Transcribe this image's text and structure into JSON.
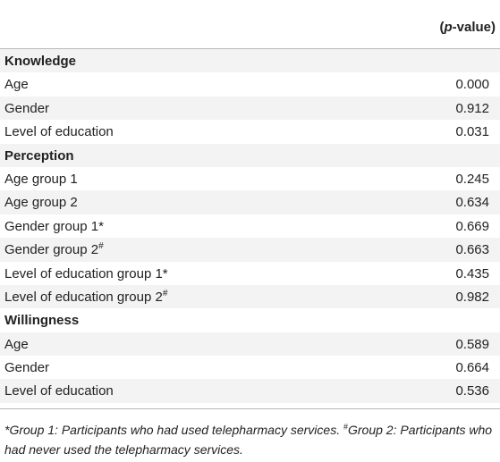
{
  "table": {
    "header": {
      "pvalue_open": "(",
      "pvalue_italic": "p",
      "pvalue_rest": "-value)"
    },
    "rows": [
      {
        "type": "section",
        "label": "Knowledge",
        "sup": "",
        "value": ""
      },
      {
        "type": "item",
        "label": "Age",
        "sup": "",
        "value": "0.000"
      },
      {
        "type": "item",
        "label": "Gender",
        "sup": "",
        "value": "0.912"
      },
      {
        "type": "item",
        "label": "Level of education",
        "sup": "",
        "value": "0.031"
      },
      {
        "type": "section",
        "label": "Perception",
        "sup": "",
        "value": ""
      },
      {
        "type": "item",
        "label": "Age group 1",
        "sup": "",
        "value": "0.245"
      },
      {
        "type": "item",
        "label": "Age group 2",
        "sup": "",
        "value": "0.634"
      },
      {
        "type": "item",
        "label": "Gender group 1*",
        "sup": "",
        "value": "0.669"
      },
      {
        "type": "item",
        "label": "Gender group 2",
        "sup": "#",
        "value": "0.663"
      },
      {
        "type": "item",
        "label": "Level of education group 1*",
        "sup": "",
        "value": "0.435"
      },
      {
        "type": "item",
        "label": "Level of education group 2",
        "sup": "#",
        "value": "0.982"
      },
      {
        "type": "section",
        "label": "Willingness",
        "sup": "",
        "value": ""
      },
      {
        "type": "item",
        "label": "Age",
        "sup": "",
        "value": "0.589"
      },
      {
        "type": "item",
        "label": "Gender",
        "sup": "",
        "value": "0.664"
      },
      {
        "type": "item",
        "label": "Level of education",
        "sup": "",
        "value": "0.536"
      }
    ]
  },
  "footnote": {
    "part1": "*Group 1: Participants who had used telepharmacy services. ",
    "sup": "#",
    "part2": "Group 2: Participants who had never used the telepharmacy services."
  },
  "colors": {
    "row_alt": "#f3f3f3",
    "rule": "#b8b8b8",
    "text": "#222222"
  }
}
